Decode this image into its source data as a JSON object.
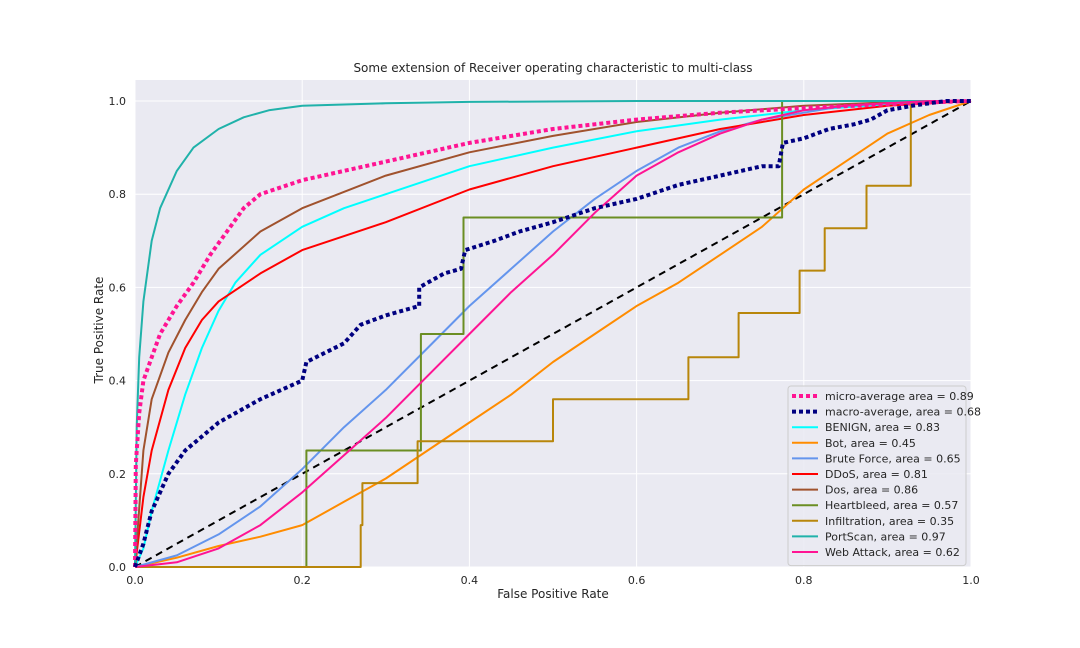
{
  "chart_data": {
    "type": "line",
    "title": "Some extension of Receiver operating characteristic to multi-class",
    "xlabel": "False Positive Rate",
    "ylabel": "True Positive Rate",
    "xlim": [
      0.0,
      1.0
    ],
    "ylim": [
      0.0,
      1.0
    ],
    "xticks": [
      "0.0",
      "0.2",
      "0.4",
      "0.6",
      "0.8",
      "1.0"
    ],
    "yticks": [
      "0.0",
      "0.2",
      "0.4",
      "0.6",
      "0.8",
      "1.0"
    ],
    "grid": true,
    "legend_position": "lower-right",
    "background": "#eaeaf2",
    "diagonal": {
      "x": [
        0,
        1
      ],
      "y": [
        0,
        1
      ],
      "color": "#000000",
      "style": "dashed"
    },
    "series": [
      {
        "name": "micro-average area = 0.89",
        "color": "#ff1493",
        "style": "dotted",
        "width": 4,
        "x": [
          0,
          0.001,
          0.005,
          0.01,
          0.02,
          0.03,
          0.05,
          0.07,
          0.09,
          0.11,
          0.13,
          0.15,
          0.2,
          0.25,
          0.3,
          0.4,
          0.5,
          0.6,
          0.7,
          0.8,
          0.9,
          0.95,
          1.0
        ],
        "y": [
          0,
          0.22,
          0.33,
          0.4,
          0.45,
          0.5,
          0.56,
          0.61,
          0.67,
          0.72,
          0.77,
          0.8,
          0.83,
          0.85,
          0.87,
          0.91,
          0.94,
          0.96,
          0.975,
          0.985,
          0.993,
          0.997,
          1.0
        ]
      },
      {
        "name": "macro-average, area = 0.68",
        "color": "#000080",
        "style": "dotted",
        "width": 4,
        "x": [
          0,
          0.01,
          0.02,
          0.04,
          0.06,
          0.08,
          0.1,
          0.15,
          0.2,
          0.205,
          0.25,
          0.27,
          0.3,
          0.34,
          0.34,
          0.35,
          0.37,
          0.39,
          0.395,
          0.43,
          0.46,
          0.5,
          0.55,
          0.6,
          0.65,
          0.7,
          0.75,
          0.77,
          0.775,
          0.8,
          0.83,
          0.86,
          0.88,
          0.9,
          0.93,
          0.95,
          0.97,
          1.0
        ],
        "y": [
          0,
          0.05,
          0.12,
          0.2,
          0.25,
          0.28,
          0.31,
          0.36,
          0.4,
          0.44,
          0.48,
          0.52,
          0.54,
          0.56,
          0.6,
          0.61,
          0.63,
          0.64,
          0.68,
          0.7,
          0.72,
          0.74,
          0.77,
          0.79,
          0.82,
          0.84,
          0.86,
          0.86,
          0.91,
          0.92,
          0.94,
          0.95,
          0.96,
          0.98,
          0.99,
          0.995,
          1.0,
          1.0
        ]
      },
      {
        "name": "BENIGN, area = 0.83",
        "color": "#00ffff",
        "style": "solid",
        "width": 2,
        "x": [
          0,
          0.01,
          0.02,
          0.04,
          0.06,
          0.08,
          0.1,
          0.12,
          0.15,
          0.2,
          0.25,
          0.3,
          0.4,
          0.5,
          0.6,
          0.7,
          0.8,
          0.9,
          1.0
        ],
        "y": [
          0,
          0.04,
          0.12,
          0.25,
          0.37,
          0.47,
          0.55,
          0.61,
          0.67,
          0.73,
          0.77,
          0.8,
          0.86,
          0.9,
          0.935,
          0.96,
          0.98,
          0.993,
          1.0
        ]
      },
      {
        "name": "Bot, area = 0.45",
        "color": "#ff8c00",
        "style": "solid",
        "width": 2,
        "x": [
          0,
          0.05,
          0.1,
          0.15,
          0.2,
          0.25,
          0.3,
          0.35,
          0.4,
          0.45,
          0.5,
          0.55,
          0.6,
          0.65,
          0.7,
          0.75,
          0.8,
          0.85,
          0.9,
          0.95,
          1.0
        ],
        "y": [
          0,
          0.02,
          0.045,
          0.065,
          0.09,
          0.14,
          0.19,
          0.25,
          0.31,
          0.37,
          0.44,
          0.5,
          0.56,
          0.61,
          0.67,
          0.73,
          0.81,
          0.87,
          0.93,
          0.97,
          1.0
        ]
      },
      {
        "name": "Brute Force, area = 0.65",
        "color": "#6495ed",
        "style": "solid",
        "width": 2,
        "x": [
          0,
          0.05,
          0.1,
          0.15,
          0.2,
          0.25,
          0.3,
          0.35,
          0.4,
          0.45,
          0.5,
          0.55,
          0.6,
          0.65,
          0.7,
          0.75,
          0.8,
          0.85,
          0.9,
          0.95,
          1.0
        ],
        "y": [
          0,
          0.025,
          0.07,
          0.13,
          0.21,
          0.3,
          0.38,
          0.47,
          0.56,
          0.64,
          0.72,
          0.79,
          0.85,
          0.9,
          0.935,
          0.96,
          0.975,
          0.99,
          0.995,
          1.0,
          1.0
        ]
      },
      {
        "name": "DDoS, area = 0.81",
        "color": "#ff0000",
        "style": "solid",
        "width": 2,
        "x": [
          0,
          0.01,
          0.02,
          0.04,
          0.06,
          0.08,
          0.1,
          0.15,
          0.2,
          0.3,
          0.4,
          0.5,
          0.6,
          0.7,
          0.8,
          0.9,
          1.0
        ],
        "y": [
          0,
          0.15,
          0.25,
          0.38,
          0.47,
          0.53,
          0.57,
          0.63,
          0.68,
          0.74,
          0.81,
          0.86,
          0.9,
          0.94,
          0.97,
          0.99,
          1.0
        ]
      },
      {
        "name": "Dos, area = 0.86",
        "color": "#a0522d",
        "style": "solid",
        "width": 2,
        "x": [
          0,
          0.01,
          0.02,
          0.04,
          0.06,
          0.08,
          0.1,
          0.15,
          0.2,
          0.3,
          0.4,
          0.5,
          0.6,
          0.7,
          0.8,
          0.9,
          1.0
        ],
        "y": [
          0,
          0.25,
          0.36,
          0.46,
          0.53,
          0.59,
          0.64,
          0.72,
          0.77,
          0.84,
          0.89,
          0.925,
          0.955,
          0.975,
          0.99,
          0.997,
          1.0
        ]
      },
      {
        "name": "Heartbleed, area = 0.57",
        "color": "#6b8e23",
        "style": "solid",
        "width": 2,
        "x": [
          0,
          0.205,
          0.205,
          0.342,
          0.342,
          0.393,
          0.393,
          0.774,
          0.774,
          1.0
        ],
        "y": [
          0,
          0,
          0.25,
          0.25,
          0.5,
          0.5,
          0.75,
          0.75,
          1.0,
          1.0
        ]
      },
      {
        "name": "Infiltration, area = 0.35",
        "color": "#b8860b",
        "style": "solid",
        "width": 2,
        "x": [
          0,
          0.27,
          0.27,
          0.272,
          0.272,
          0.338,
          0.338,
          0.5,
          0.5,
          0.662,
          0.662,
          0.722,
          0.722,
          0.795,
          0.795,
          0.825,
          0.825,
          0.875,
          0.875,
          0.928,
          0.928,
          1.0
        ],
        "y": [
          0,
          0,
          0.09,
          0.09,
          0.18,
          0.18,
          0.27,
          0.27,
          0.36,
          0.36,
          0.45,
          0.45,
          0.545,
          0.545,
          0.636,
          0.636,
          0.727,
          0.727,
          0.818,
          0.818,
          1.0,
          1.0
        ]
      },
      {
        "name": "PortScan, area = 0.97",
        "color": "#20b2aa",
        "style": "solid",
        "width": 2,
        "x": [
          0,
          0.002,
          0.005,
          0.01,
          0.02,
          0.03,
          0.05,
          0.07,
          0.1,
          0.13,
          0.16,
          0.2,
          0.3,
          0.4,
          0.6,
          0.8,
          1.0
        ],
        "y": [
          0,
          0.3,
          0.45,
          0.57,
          0.7,
          0.77,
          0.85,
          0.9,
          0.94,
          0.965,
          0.98,
          0.99,
          0.995,
          0.998,
          1.0,
          1.0,
          1.0
        ]
      },
      {
        "name": "Web Attack, area = 0.62",
        "color": "#ff1493",
        "style": "solid",
        "width": 2,
        "x": [
          0,
          0.05,
          0.1,
          0.15,
          0.2,
          0.25,
          0.3,
          0.35,
          0.4,
          0.45,
          0.5,
          0.55,
          0.6,
          0.65,
          0.7,
          0.75,
          0.8,
          0.85,
          0.9,
          0.95,
          1.0
        ],
        "y": [
          0,
          0.01,
          0.04,
          0.09,
          0.16,
          0.24,
          0.32,
          0.41,
          0.5,
          0.59,
          0.67,
          0.76,
          0.84,
          0.89,
          0.93,
          0.96,
          0.98,
          0.99,
          0.995,
          1.0,
          1.0
        ]
      }
    ]
  }
}
